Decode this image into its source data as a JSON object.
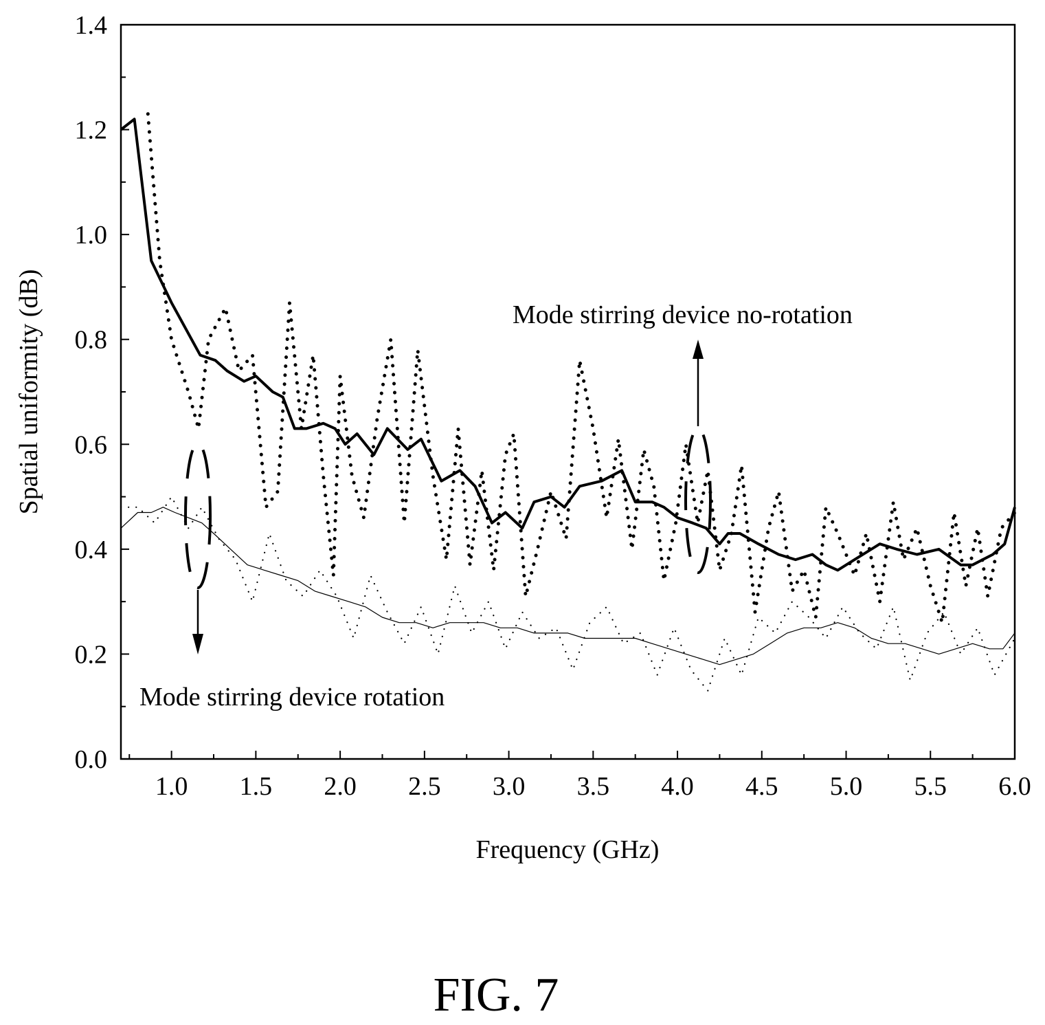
{
  "chart_data": {
    "type": "line",
    "xlabel": "Frequency (GHz)",
    "ylabel": "Spatial uniformity (dB)",
    "xlim": [
      0.7,
      6.0
    ],
    "ylim": [
      0.0,
      1.4
    ],
    "xticks": [
      "1.0",
      "1.5",
      "2.0",
      "2.5",
      "3.0",
      "3.5",
      "4.0",
      "4.5",
      "5.0",
      "5.5",
      "6.0"
    ],
    "yticks": [
      "0.0",
      "0.2",
      "0.4",
      "0.6",
      "0.8",
      "1.0",
      "1.2",
      "1.4"
    ],
    "grid": false,
    "annotations": [
      "Mode stirring device no-rotation",
      "Mode stirring device rotation"
    ],
    "caption": "FIG. 7",
    "series": [
      {
        "style": "thick-solid",
        "x": [
          0.7,
          0.78,
          0.88,
          1.0,
          1.17,
          1.26,
          1.33,
          1.43,
          1.5,
          1.6,
          1.66,
          1.73,
          1.8,
          1.9,
          1.97,
          2.03,
          2.1,
          2.2,
          2.28,
          2.4,
          2.48,
          2.6,
          2.71,
          2.8,
          2.9,
          2.98,
          3.08,
          3.15,
          3.25,
          3.33,
          3.42,
          3.55,
          3.67,
          3.75,
          3.85,
          3.92,
          4.0,
          4.09,
          4.17,
          4.25,
          4.3,
          4.37,
          4.48,
          4.6,
          4.7,
          4.8,
          4.88,
          4.95,
          5.05,
          5.2,
          5.3,
          5.42,
          5.55,
          5.68,
          5.75,
          5.87,
          5.94,
          6.0
        ],
        "y": [
          1.2,
          1.22,
          0.95,
          0.87,
          0.77,
          0.76,
          0.74,
          0.72,
          0.73,
          0.7,
          0.69,
          0.63,
          0.63,
          0.64,
          0.63,
          0.6,
          0.62,
          0.58,
          0.63,
          0.59,
          0.61,
          0.53,
          0.55,
          0.52,
          0.45,
          0.47,
          0.44,
          0.49,
          0.5,
          0.48,
          0.52,
          0.53,
          0.55,
          0.49,
          0.49,
          0.48,
          0.46,
          0.45,
          0.44,
          0.41,
          0.43,
          0.43,
          0.41,
          0.39,
          0.38,
          0.39,
          0.37,
          0.36,
          0.38,
          0.41,
          0.4,
          0.39,
          0.4,
          0.37,
          0.37,
          0.39,
          0.41,
          0.48
        ]
      },
      {
        "style": "thick-dotted",
        "x": [
          0.86,
          0.93,
          1.0,
          1.1,
          1.16,
          1.22,
          1.32,
          1.4,
          1.48,
          1.56,
          1.63,
          1.7,
          1.77,
          1.84,
          1.9,
          1.96,
          2.0,
          2.07,
          2.14,
          2.22,
          2.3,
          2.38,
          2.46,
          2.55,
          2.63,
          2.7,
          2.77,
          2.84,
          2.91,
          2.98,
          3.03,
          3.1,
          3.17,
          3.25,
          3.34,
          3.42,
          3.5,
          3.58,
          3.65,
          3.73,
          3.8,
          3.86,
          3.92,
          3.99,
          4.05,
          4.12,
          4.18,
          4.25,
          4.32,
          4.38,
          4.46,
          4.54,
          4.6,
          4.68,
          4.75,
          4.82,
          4.88,
          4.95,
          5.05,
          5.12,
          5.2,
          5.28,
          5.34,
          5.42,
          5.5,
          5.57,
          5.64,
          5.71,
          5.78,
          5.84,
          5.92,
          6.0
        ],
        "y": [
          1.23,
          0.95,
          0.8,
          0.7,
          0.63,
          0.8,
          0.86,
          0.74,
          0.77,
          0.48,
          0.51,
          0.87,
          0.63,
          0.77,
          0.54,
          0.35,
          0.73,
          0.54,
          0.46,
          0.65,
          0.8,
          0.45,
          0.78,
          0.54,
          0.38,
          0.63,
          0.37,
          0.55,
          0.36,
          0.58,
          0.62,
          0.31,
          0.4,
          0.51,
          0.42,
          0.76,
          0.63,
          0.46,
          0.61,
          0.4,
          0.59,
          0.52,
          0.34,
          0.45,
          0.6,
          0.45,
          0.55,
          0.36,
          0.43,
          0.56,
          0.28,
          0.44,
          0.51,
          0.32,
          0.36,
          0.27,
          0.48,
          0.43,
          0.35,
          0.43,
          0.3,
          0.49,
          0.38,
          0.44,
          0.33,
          0.26,
          0.47,
          0.33,
          0.44,
          0.31,
          0.44,
          0.47
        ]
      },
      {
        "style": "thin-solid",
        "x": [
          0.7,
          0.8,
          0.88,
          0.95,
          1.02,
          1.1,
          1.18,
          1.25,
          1.35,
          1.45,
          1.55,
          1.65,
          1.75,
          1.85,
          1.95,
          2.05,
          2.15,
          2.25,
          2.35,
          2.45,
          2.55,
          2.65,
          2.75,
          2.85,
          2.95,
          3.05,
          3.15,
          3.25,
          3.35,
          3.45,
          3.55,
          3.65,
          3.75,
          3.85,
          3.95,
          4.05,
          4.15,
          4.25,
          4.35,
          4.45,
          4.55,
          4.65,
          4.75,
          4.85,
          4.95,
          5.05,
          5.15,
          5.25,
          5.35,
          5.45,
          5.55,
          5.65,
          5.75,
          5.85,
          5.93,
          6.0
        ],
        "y": [
          0.44,
          0.47,
          0.47,
          0.48,
          0.47,
          0.46,
          0.45,
          0.43,
          0.4,
          0.37,
          0.36,
          0.35,
          0.34,
          0.32,
          0.31,
          0.3,
          0.29,
          0.27,
          0.26,
          0.26,
          0.25,
          0.26,
          0.26,
          0.26,
          0.25,
          0.25,
          0.24,
          0.24,
          0.24,
          0.23,
          0.23,
          0.23,
          0.23,
          0.22,
          0.21,
          0.2,
          0.19,
          0.18,
          0.19,
          0.2,
          0.22,
          0.24,
          0.25,
          0.25,
          0.26,
          0.25,
          0.23,
          0.22,
          0.22,
          0.21,
          0.2,
          0.21,
          0.22,
          0.21,
          0.21,
          0.24
        ]
      },
      {
        "style": "thin-dotted",
        "x": [
          0.7,
          0.8,
          0.9,
          1.0,
          1.1,
          1.18,
          1.28,
          1.38,
          1.48,
          1.58,
          1.68,
          1.78,
          1.88,
          1.98,
          2.08,
          2.18,
          2.28,
          2.38,
          2.48,
          2.58,
          2.68,
          2.78,
          2.88,
          2.98,
          3.08,
          3.18,
          3.28,
          3.38,
          3.48,
          3.58,
          3.68,
          3.78,
          3.88,
          3.98,
          4.08,
          4.18,
          4.28,
          4.38,
          4.48,
          4.58,
          4.68,
          4.78,
          4.88,
          4.98,
          5.08,
          5.18,
          5.28,
          5.38,
          5.48,
          5.58,
          5.68,
          5.78,
          5.88,
          6.0
        ],
        "y": [
          0.48,
          0.48,
          0.45,
          0.5,
          0.44,
          0.48,
          0.42,
          0.38,
          0.3,
          0.43,
          0.34,
          0.31,
          0.36,
          0.31,
          0.23,
          0.35,
          0.28,
          0.22,
          0.29,
          0.2,
          0.33,
          0.24,
          0.3,
          0.21,
          0.28,
          0.23,
          0.25,
          0.17,
          0.26,
          0.29,
          0.22,
          0.24,
          0.16,
          0.25,
          0.17,
          0.13,
          0.23,
          0.16,
          0.27,
          0.24,
          0.3,
          0.27,
          0.23,
          0.29,
          0.24,
          0.21,
          0.29,
          0.15,
          0.24,
          0.28,
          0.2,
          0.25,
          0.16,
          0.23
        ]
      }
    ]
  }
}
